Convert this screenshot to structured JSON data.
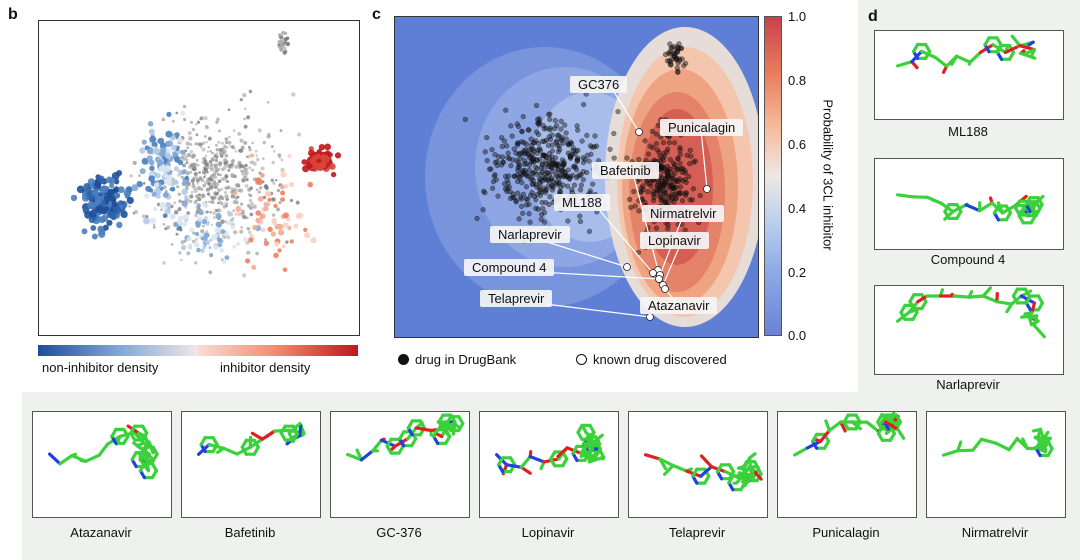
{
  "panels": {
    "b": {
      "letter": "b",
      "legend_left": "non-inhibitor density",
      "legend_right": "inhibitor density"
    },
    "c": {
      "letter": "c",
      "colorbar_label": "Probability of 3CL inhibitor",
      "colorbar_ticks": [
        "1.0",
        "0.8",
        "0.6",
        "0.4",
        "0.2",
        "0.0"
      ],
      "drug_labels": [
        "GC376",
        "Punicalagin",
        "Bafetinib",
        "Nirmatrelvir",
        "ML188",
        "Lopinavir",
        "Narlaprevir",
        "Compound 4",
        "Atazanavir",
        "Telaprevir"
      ],
      "legend_filled": "drug in DrugBank",
      "legend_open": "known drug discovered"
    },
    "d": {
      "letter": "d",
      "molecules": [
        "ML188",
        "Compound 4",
        "Narlaprevir"
      ]
    },
    "bottom": {
      "molecules": [
        "Atazanavir",
        "Bafetinib",
        "GC-376",
        "Lopinavir",
        "Telaprevir",
        "Punicalagin",
        "Nirmatrelvir"
      ]
    }
  },
  "colors": {
    "inhibitor": "#c0161c",
    "non_inhibitor": "#1f4e99",
    "carbon": "#3bd13b",
    "oxygen": "#e02020",
    "nitrogen": "#2040e0"
  }
}
